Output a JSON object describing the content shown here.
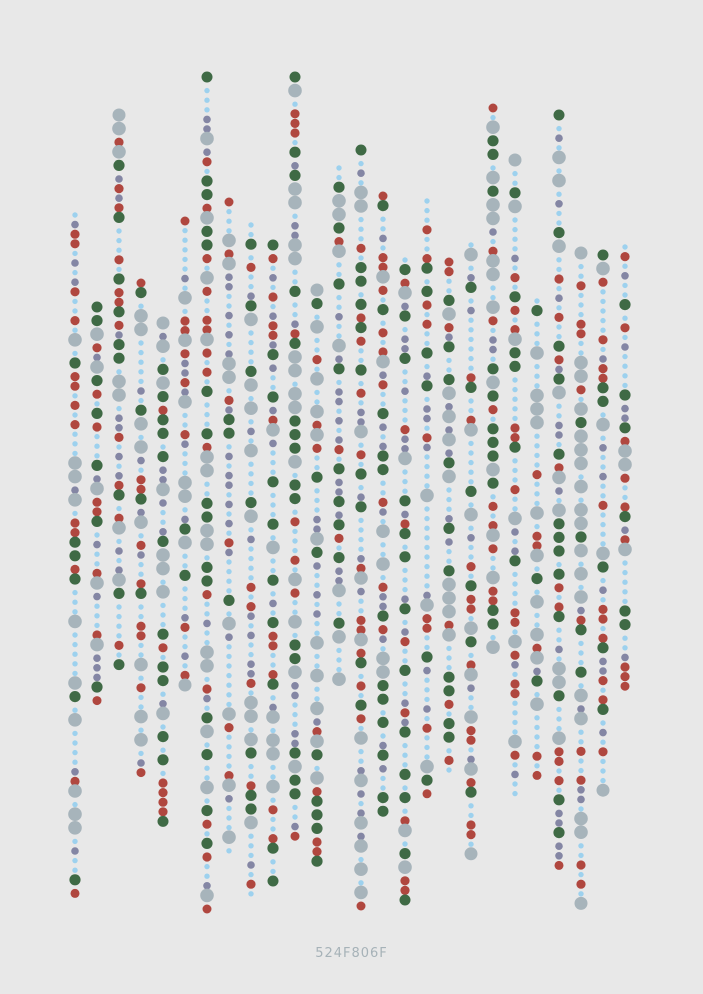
{
  "caption": "524F806F",
  "palette": {
    "background": "#e8e8e8",
    "sky": "#9dd1ee",
    "slate": "#8486a4",
    "grey": "#a7b4bb",
    "green": "#3f6a45",
    "red": "#b0473f"
  }
}
